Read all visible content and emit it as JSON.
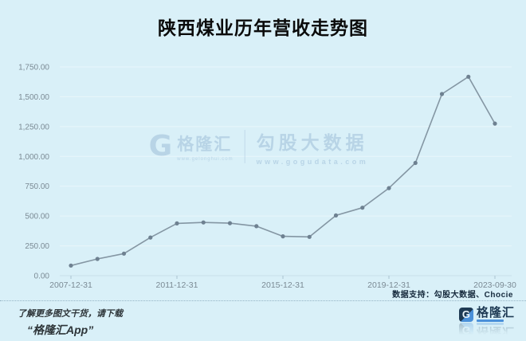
{
  "title": "陕西煤业历年营收走势图",
  "watermark": {
    "logo_glyph": "G",
    "logo_text": "格隆汇",
    "logo_url": "www.gelonghui.com",
    "brand_text": "勾股大数据",
    "brand_url": "www.gogudata.com"
  },
  "footer": {
    "data_support": "数据支持：勾股大数据、Chocie",
    "promo_line1": "了解更多图文干货，请下载",
    "promo_line2": "“格隆汇App”",
    "logo_glyph": "G",
    "logo_text": "格隆汇"
  },
  "colors": {
    "background": "#d9f0f8",
    "gridline": "#e9f6fb",
    "axis_line": "#c9e0ea",
    "tick": "#a9c2cf",
    "axis_label": "#7b8a94",
    "series_line": "#8496a3",
    "marker": "#6e8191",
    "title_text": "#0b0b0b",
    "footer_navy": "#1e3a54",
    "accent_blue": "#4a90d9"
  },
  "chart_data": {
    "type": "line",
    "title": "陕西煤业历年营收走势图",
    "xlabel": "",
    "ylabel": "",
    "categories": [
      "2007-12-31",
      "2008-12-31",
      "2009-12-31",
      "2010-12-31",
      "2011-12-31",
      "2012-12-31",
      "2013-12-31",
      "2014-12-31",
      "2015-12-31",
      "2016-12-31",
      "2017-12-31",
      "2018-12-31",
      "2019-12-31",
      "2020-12-31",
      "2021-12-31",
      "2022-12-31",
      "2023-09-30"
    ],
    "values": [
      85,
      140,
      185,
      320,
      438,
      446,
      440,
      415,
      330,
      325,
      505,
      570,
      734,
      945,
      1523,
      1668,
      1275
    ],
    "ylim": [
      0,
      1750
    ],
    "ytick_step": 250,
    "yticks": [
      "0.00",
      "250.00",
      "500.00",
      "750.00",
      "1,000.00",
      "1,250.00",
      "1,500.00",
      "1,750.00"
    ],
    "xtick_indices": [
      0,
      4,
      8,
      12,
      16
    ],
    "xtick_labels": [
      "2007-12-31",
      "2011-12-31",
      "2015-12-31",
      "2019-12-31",
      "2023-09-30"
    ],
    "grid": true,
    "legend": "none",
    "marker": "circle"
  }
}
